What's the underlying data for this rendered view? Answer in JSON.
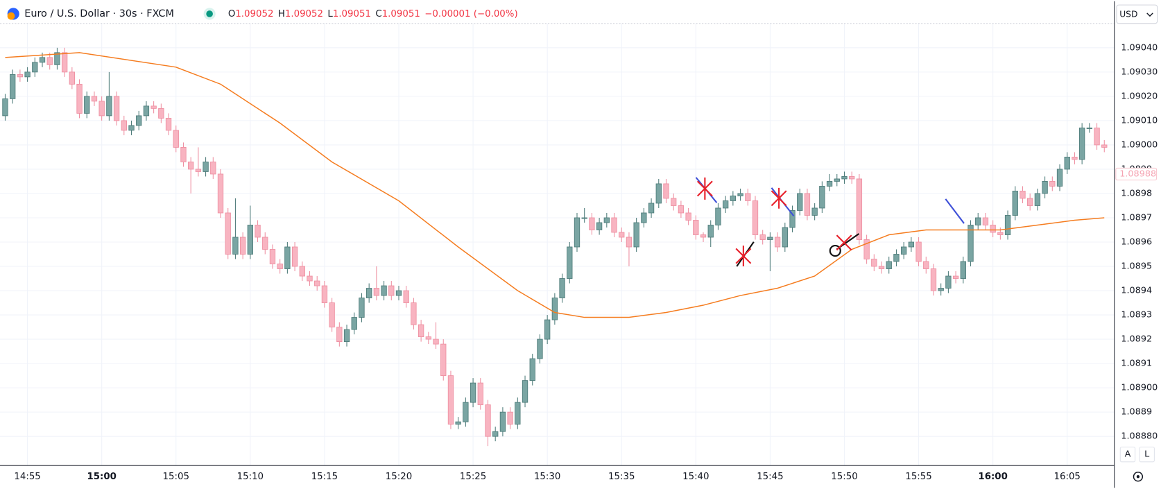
{
  "chart_data": {
    "type": "candlestick",
    "title": "Euro / U.S. Dollar · 30s · FXCM",
    "ohlc": [
      {
        "key": "O",
        "value": 1.09052
      },
      {
        "key": "H",
        "value": 1.09052
      },
      {
        "key": "L",
        "value": 1.09051
      },
      {
        "key": "C",
        "value": 1.09051
      }
    ],
    "change": {
      "value": -1e-05,
      "label": "−0.00001 (−0.00%)"
    },
    "currency": "USD",
    "buttons": [
      "A",
      "L"
    ],
    "last_price": 1.08988,
    "up_color": "#7aa5a3",
    "down_color": "#f8b4c1",
    "grid": true,
    "ylim": [
      1.08868,
      1.0905
    ],
    "yticks": [
      {
        "value": 1.0888,
        "label": "1.08880"
      },
      1.0889,
      {
        "value": 1.089,
        "label": "1.08900"
      },
      1.0891,
      1.0892,
      1.0893,
      1.0894,
      1.0895,
      1.0896,
      1.0897,
      1.0898,
      1.0899,
      {
        "value": 1.09,
        "label": "1.09000"
      },
      {
        "value": 1.0901,
        "label": "1.09010"
      },
      {
        "value": 1.0902,
        "label": "1.09020"
      },
      {
        "value": 1.0903,
        "label": "1.09030"
      },
      {
        "value": 1.0904,
        "label": "1.09040"
      }
    ],
    "categories": [
      null,
      null,
      null,
      "14:55",
      null,
      null,
      null,
      null,
      null,
      null,
      null,
      null,
      null,
      "15:00",
      null,
      null,
      null,
      null,
      null,
      null,
      null,
      null,
      null,
      "15:05",
      null,
      null,
      null,
      null,
      null,
      null,
      null,
      null,
      null,
      "15:10",
      null,
      null,
      null,
      null,
      null,
      null,
      null,
      null,
      null,
      "15:15",
      null,
      null,
      null,
      null,
      null,
      null,
      null,
      null,
      null,
      "15:20",
      null,
      null,
      null,
      null,
      null,
      null,
      null,
      null,
      null,
      "15:25",
      null,
      null,
      null,
      null,
      null,
      null,
      null,
      null,
      null,
      "15:30",
      null,
      null,
      null,
      null,
      null,
      null,
      null,
      null,
      null,
      "15:35",
      null,
      null,
      null,
      null,
      null,
      null,
      null,
      null,
      null,
      "15:40",
      null,
      null,
      null,
      null,
      null,
      null,
      null,
      null,
      null,
      "15:45",
      null,
      null,
      null,
      null,
      null,
      null,
      null,
      null,
      null,
      "15:50",
      null,
      null,
      null,
      null,
      null,
      null,
      null,
      null,
      null,
      "15:55",
      null,
      null,
      null,
      null,
      null,
      null,
      null,
      null,
      null,
      "16:00",
      null,
      null,
      null,
      null,
      null,
      null,
      null,
      null,
      null,
      "16:05",
      null,
      null,
      null,
      null,
      null
    ],
    "open": [
      1.09012,
      1.09019,
      1.09029,
      1.09028,
      1.0903,
      1.09034,
      1.09036,
      1.09033,
      1.09038,
      1.0903,
      1.09025,
      1.09013,
      1.0902,
      1.09018,
      1.09012,
      1.0902,
      1.0901,
      1.09006,
      1.09008,
      1.09012,
      1.09016,
      1.09015,
      1.09011,
      1.09006,
      1.08999,
      1.08993,
      1.0899,
      1.08989,
      1.08993,
      1.08988,
      1.08972,
      1.08955,
      1.08962,
      1.08955,
      1.08967,
      1.08962,
      1.08957,
      1.08951,
      1.08949,
      1.08958,
      1.0895,
      1.08946,
      1.08944,
      1.08942,
      1.08935,
      1.08925,
      1.08919,
      1.08924,
      1.08929,
      1.08937,
      1.08941,
      1.08938,
      1.08942,
      1.08938,
      1.0894,
      1.08935,
      1.08926,
      1.08921,
      1.0892,
      1.08918,
      1.08905,
      1.08885,
      1.08886,
      1.08894,
      1.08902,
      1.08893,
      1.0888,
      1.08882,
      1.0889,
      1.08885,
      1.08894,
      1.08903,
      1.08912,
      1.0892,
      1.08928,
      1.08937,
      1.08945,
      1.08958,
      1.0897,
      1.0897,
      1.08965,
      1.08968,
      1.0897,
      1.08964,
      1.08962,
      1.08958,
      1.08968,
      1.08972,
      1.08976,
      1.08984,
      1.08978,
      1.08975,
      1.08972,
      1.08969,
      1.08963,
      1.08962,
      1.08967,
      1.08974,
      1.08977,
      1.08979,
      1.0898,
      1.08977,
      1.08963,
      1.08961,
      1.08962,
      1.08958,
      1.08966,
      1.08973,
      1.0898,
      1.08971,
      1.08974,
      1.08983,
      1.08985,
      1.08986,
      1.08987,
      1.08986,
      1.08961,
      1.08953,
      1.0895,
      1.08949,
      1.08952,
      1.08955,
      1.08958,
      1.0896,
      1.08952,
      1.08949,
      1.0894,
      1.08941,
      1.08946,
      1.08945,
      1.08952,
      1.08967,
      1.0897,
      1.08967,
      1.08964,
      1.08963,
      1.08971,
      1.08981,
      1.08978,
      1.08975,
      1.0898,
      1.08985,
      1.08983,
      1.0899,
      1.08995,
      1.08994,
      1.09007,
      1.09007,
      1.09
    ],
    "high": [
      1.09021,
      1.09031,
      1.09031,
      1.09032,
      1.09036,
      1.09038,
      1.09038,
      1.0904,
      1.0904,
      1.09032,
      1.09027,
      1.09022,
      1.09022,
      1.0902,
      1.0903,
      1.09022,
      1.09012,
      1.0901,
      1.09014,
      1.09018,
      1.09018,
      1.09017,
      1.09013,
      1.09008,
      1.09001,
      1.08995,
      1.08999,
      1.08995,
      1.08995,
      1.0899,
      1.08974,
      1.08978,
      1.08964,
      1.08975,
      1.08969,
      1.08964,
      1.08959,
      1.08953,
      1.0896,
      1.0896,
      1.08952,
      1.08948,
      1.08946,
      1.08944,
      1.08937,
      1.08927,
      1.08926,
      1.08931,
      1.08939,
      1.08943,
      1.0895,
      1.08944,
      1.08944,
      1.08942,
      1.08942,
      1.08937,
      1.08928,
      1.08923,
      1.08927,
      1.0892,
      1.08907,
      1.08888,
      1.08896,
      1.08904,
      1.08904,
      1.08895,
      1.08884,
      1.08892,
      1.08892,
      1.08896,
      1.08905,
      1.08914,
      1.08922,
      1.0893,
      1.08939,
      1.08947,
      1.0896,
      1.08972,
      1.08974,
      1.08972,
      1.0897,
      1.08972,
      1.08972,
      1.08966,
      1.08964,
      1.0897,
      1.08974,
      1.08978,
      1.08986,
      1.08986,
      1.0898,
      1.08977,
      1.08974,
      1.08971,
      1.08964,
      1.08969,
      1.08976,
      1.08979,
      1.08981,
      1.08982,
      1.08982,
      1.08979,
      1.08965,
      1.08964,
      1.08964,
      1.08968,
      1.08975,
      1.08982,
      1.08982,
      1.08976,
      1.08985,
      1.08988,
      1.08988,
      1.08989,
      1.08989,
      1.08988,
      1.08963,
      1.08955,
      1.08952,
      1.08954,
      1.08957,
      1.0896,
      1.08962,
      1.08962,
      1.08954,
      1.08951,
      1.08943,
      1.08948,
      1.08948,
      1.08954,
      1.08969,
      1.08972,
      1.08972,
      1.08969,
      1.08966,
      1.08973,
      1.08983,
      1.08983,
      1.0898,
      1.08982,
      1.08987,
      1.08987,
      1.08992,
      1.08997,
      1.08997,
      1.09009,
      1.09009,
      1.09009,
      1.09002
    ],
    "low": [
      1.0901,
      1.09017,
      1.09026,
      1.09026,
      1.09028,
      1.09032,
      1.09031,
      1.09031,
      1.09028,
      1.09023,
      1.09011,
      1.09011,
      1.09016,
      1.0901,
      1.0901,
      1.09008,
      1.09004,
      1.09004,
      1.09006,
      1.0901,
      1.09013,
      1.09009,
      1.09004,
      1.08997,
      1.08991,
      1.0898,
      1.08987,
      1.08987,
      1.08986,
      1.0897,
      1.08953,
      1.08953,
      1.08953,
      1.08953,
      1.0896,
      1.08955,
      1.08949,
      1.08947,
      1.08947,
      1.08948,
      1.08944,
      1.08942,
      1.0894,
      1.08933,
      1.08923,
      1.08917,
      1.08917,
      1.08922,
      1.08927,
      1.08935,
      1.08936,
      1.08936,
      1.08936,
      1.08936,
      1.08933,
      1.08924,
      1.08919,
      1.08918,
      1.08916,
      1.08903,
      1.08883,
      1.08883,
      1.08884,
      1.08892,
      1.08891,
      1.08876,
      1.08878,
      1.0888,
      1.08883,
      1.08883,
      1.08892,
      1.08901,
      1.0891,
      1.08918,
      1.08926,
      1.08935,
      1.08943,
      1.08956,
      1.08968,
      1.08963,
      1.08963,
      1.08966,
      1.08962,
      1.0896,
      1.0895,
      1.08956,
      1.08966,
      1.0897,
      1.08974,
      1.08976,
      1.08973,
      1.0897,
      1.08967,
      1.08961,
      1.0896,
      1.08958,
      1.08965,
      1.08972,
      1.08975,
      1.08977,
      1.08975,
      1.08961,
      1.08959,
      1.08948,
      1.08956,
      1.08956,
      1.08964,
      1.08971,
      1.08969,
      1.08969,
      1.08972,
      1.08981,
      1.08983,
      1.08984,
      1.08984,
      1.08959,
      1.08951,
      1.08948,
      1.08947,
      1.08947,
      1.0895,
      1.08953,
      1.08956,
      1.0895,
      1.08947,
      1.08938,
      1.08938,
      1.08939,
      1.08943,
      1.08943,
      1.0895,
      1.08965,
      1.08965,
      1.08962,
      1.08961,
      1.08961,
      1.08969,
      1.08976,
      1.08973,
      1.08973,
      1.08978,
      1.08981,
      1.08981,
      1.08988,
      1.08992,
      1.08992,
      1.09005,
      1.08998,
      1.08997
    ],
    "close": [
      1.09019,
      1.09029,
      1.09028,
      1.0903,
      1.09034,
      1.09036,
      1.09033,
      1.09038,
      1.0903,
      1.09025,
      1.09013,
      1.0902,
      1.09018,
      1.09012,
      1.0902,
      1.0901,
      1.09006,
      1.09008,
      1.09012,
      1.09016,
      1.09015,
      1.09011,
      1.09006,
      1.08999,
      1.08993,
      1.0899,
      1.08989,
      1.08993,
      1.08988,
      1.08972,
      1.08955,
      1.08962,
      1.08955,
      1.08967,
      1.08962,
      1.08957,
      1.08951,
      1.08949,
      1.08958,
      1.0895,
      1.08946,
      1.08944,
      1.08942,
      1.08935,
      1.08925,
      1.08919,
      1.08924,
      1.08929,
      1.08937,
      1.08941,
      1.08938,
      1.08942,
      1.08938,
      1.0894,
      1.08935,
      1.08926,
      1.08921,
      1.0892,
      1.08918,
      1.08905,
      1.08885,
      1.08886,
      1.08894,
      1.08902,
      1.08893,
      1.0888,
      1.08882,
      1.0889,
      1.08885,
      1.08894,
      1.08903,
      1.08912,
      1.0892,
      1.08928,
      1.08937,
      1.08945,
      1.08958,
      1.0897,
      1.0897,
      1.08965,
      1.08968,
      1.0897,
      1.08964,
      1.08962,
      1.08958,
      1.08968,
      1.08972,
      1.08976,
      1.08984,
      1.08978,
      1.08975,
      1.08972,
      1.08969,
      1.08963,
      1.08962,
      1.08967,
      1.08974,
      1.08977,
      1.08979,
      1.0898,
      1.08977,
      1.08963,
      1.08961,
      1.08962,
      1.08958,
      1.08966,
      1.08973,
      1.0898,
      1.08971,
      1.08974,
      1.08983,
      1.08985,
      1.08986,
      1.08987,
      1.08986,
      1.08961,
      1.08953,
      1.0895,
      1.08949,
      1.08952,
      1.08955,
      1.08958,
      1.0896,
      1.08952,
      1.08949,
      1.0894,
      1.08941,
      1.08946,
      1.08945,
      1.08952,
      1.08967,
      1.0897,
      1.08967,
      1.08964,
      1.08963,
      1.08971,
      1.08981,
      1.08978,
      1.08975,
      1.0898,
      1.08985,
      1.08983,
      1.0899,
      1.08995,
      1.08994,
      1.09007,
      1.09007,
      1.09,
      1.08999
    ],
    "moving_average": {
      "color": "#f57c1f",
      "x": [
        0,
        10,
        23,
        29,
        37,
        44,
        53,
        61,
        69,
        74,
        78,
        84,
        89,
        94,
        99,
        104,
        109,
        114,
        119,
        124,
        129,
        134,
        139,
        144,
        148
      ],
      "values": [
        1.09036,
        1.09038,
        1.09032,
        1.09025,
        1.09009,
        1.08993,
        1.08977,
        1.08958,
        1.0894,
        1.08931,
        1.08929,
        1.08929,
        1.08931,
        1.08934,
        1.08938,
        1.08941,
        1.08946,
        1.08957,
        1.08963,
        1.08965,
        1.08965,
        1.08965,
        1.08967,
        1.08969,
        1.0897
      ]
    }
  }
}
